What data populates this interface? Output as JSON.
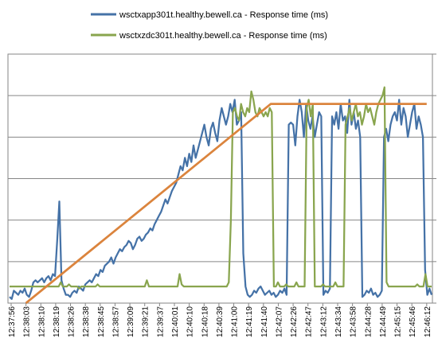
{
  "chart_data": {
    "type": "line",
    "title": "",
    "xlabel": "",
    "ylabel": "",
    "grid": "horizontal",
    "legend_position": "top",
    "x_ticks": [
      "12:37:56",
      "12:38:03",
      "12:38:10",
      "12:38:19",
      "12:38:26",
      "12:38:38",
      "12:38:45",
      "12:38:57",
      "12:39:09",
      "12:39:21",
      "12:39:37",
      "12:40:01",
      "12:40:10",
      "12:40:18",
      "12:40:39",
      "12:41:00",
      "12:41:19",
      "12:41:40",
      "12:42:07",
      "12:42:26",
      "12:42:47",
      "12:43:12",
      "12:43:34",
      "12:43:58",
      "12:44:28",
      "12:44:49",
      "12:45:15",
      "12:45:46",
      "12:46:12"
    ],
    "ylim": [
      0,
      6
    ],
    "series": [
      {
        "name": "wsctxapp301t.healthy.bewell.ca -  Response time (ms)",
        "color": "#4572a7",
        "values": [
          0.15,
          0.1,
          0.3,
          0.25,
          0.2,
          0.3,
          0.25,
          0.35,
          0.2,
          0.15,
          0.3,
          0.5,
          0.55,
          0.5,
          0.55,
          0.6,
          0.5,
          0.6,
          0.65,
          0.55,
          0.7,
          0.65,
          1.5,
          2.45,
          0.55,
          0.35,
          0.2,
          0.2,
          0.15,
          0.25,
          0.3,
          0.25,
          0.4,
          0.35,
          0.3,
          0.45,
          0.5,
          0.55,
          0.5,
          0.6,
          0.7,
          0.65,
          0.8,
          0.75,
          0.9,
          0.95,
          1.0,
          1.1,
          0.95,
          1.1,
          1.2,
          1.3,
          1.25,
          1.35,
          1.4,
          1.5,
          1.45,
          1.3,
          1.4,
          1.55,
          1.6,
          1.5,
          1.55,
          1.65,
          1.7,
          1.8,
          1.75,
          1.9,
          2.0,
          2.1,
          2.2,
          2.35,
          2.5,
          2.4,
          2.55,
          2.7,
          2.8,
          2.9,
          3.1,
          3.3,
          3.2,
          3.5,
          3.3,
          3.6,
          3.4,
          3.8,
          3.5,
          3.7,
          3.9,
          4.1,
          4.3,
          4.0,
          3.8,
          4.2,
          4.35,
          4.1,
          3.9,
          4.4,
          4.7,
          4.5,
          4.3,
          4.5,
          4.8,
          4.6,
          4.9,
          4.3,
          4.4,
          4.6,
          1.2,
          0.4,
          0.2,
          0.15,
          0.2,
          0.3,
          0.25,
          0.35,
          0.4,
          0.3,
          0.2,
          0.25,
          0.3,
          0.2,
          0.25,
          0.15,
          0.2,
          0.3,
          0.25,
          0.35,
          0.2,
          4.3,
          4.35,
          4.3,
          3.8,
          4.5,
          4.9,
          4.6,
          4.0,
          4.8,
          4.4,
          4.2,
          4.5,
          4.0,
          4.3,
          4.6,
          4.5,
          0.2,
          0.3,
          0.25,
          0.35,
          4.5,
          4.3,
          4.6,
          4.2,
          4.8,
          4.4,
          4.5,
          4.1,
          4.9,
          4.3,
          4.6,
          4.2,
          4.4,
          4.0,
          0.15,
          0.2,
          0.3,
          0.25,
          0.35,
          0.2,
          0.25,
          0.15,
          0.2,
          0.3,
          4.0,
          4.2,
          3.9,
          4.3,
          4.5,
          4.6,
          4.4,
          4.9,
          4.3,
          4.7,
          4.5,
          4.0,
          4.3,
          4.6,
          4.8,
          4.2,
          4.5,
          4.3,
          4.0,
          0.8,
          0.2,
          0.35,
          0.2
        ]
      },
      {
        "name": "wsctxzdc301t.healthy.bewell.ca -  Response time (ms)",
        "color": "#89a54e",
        "values": [
          0.4,
          0.4,
          0.4,
          0.4,
          0.4,
          0.4,
          0.4,
          0.4,
          0.4,
          0.4,
          0.4,
          0.4,
          0.4,
          0.4,
          0.4,
          0.4,
          0.4,
          0.4,
          0.4,
          0.4,
          0.4,
          0.4,
          0.4,
          0.4,
          0.4,
          0.5,
          0.4,
          0.4,
          0.4,
          0.45,
          0.4,
          0.4,
          0.4,
          0.4,
          0.35,
          0.4,
          0.4,
          0.4,
          0.4,
          0.4,
          0.4,
          0.4,
          0.4,
          0.45,
          0.4,
          0.4,
          0.4,
          0.4,
          0.4,
          0.4,
          0.4,
          0.4,
          0.4,
          0.4,
          0.4,
          0.4,
          0.4,
          0.4,
          0.4,
          0.4,
          0.4,
          0.4,
          0.4,
          0.4,
          0.4,
          0.4,
          0.4,
          0.55,
          0.4,
          0.4,
          0.4,
          0.4,
          0.4,
          0.4,
          0.4,
          0.4,
          0.4,
          0.4,
          0.4,
          0.4,
          0.4,
          0.4,
          0.4,
          0.7,
          0.45,
          0.4,
          0.4,
          0.4,
          0.4,
          0.4,
          0.4,
          0.4,
          0.4,
          0.4,
          0.4,
          0.4,
          0.4,
          0.4,
          0.4,
          0.4,
          0.4,
          0.4,
          0.4,
          0.4,
          0.4,
          0.4,
          0.4,
          0.5,
          2.0,
          4.6,
          4.7,
          4.5,
          4.4,
          4.8,
          4.6,
          4.5,
          4.7,
          4.6,
          5.1,
          4.9,
          4.6,
          4.5,
          4.7,
          4.6,
          4.5,
          4.6,
          4.5,
          4.7,
          4.6,
          0.4,
          0.4,
          0.5,
          0.4,
          0.4,
          0.4,
          0.45,
          0.4,
          0.4,
          0.4,
          0.4,
          0.5,
          0.4,
          0.4,
          0.4,
          0.4,
          4.7,
          4.9,
          4.5,
          4.8,
          0.4,
          0.4,
          0.4,
          0.4,
          0.45,
          0.4,
          0.4,
          0.4,
          0.4,
          0.4,
          0.5,
          0.4,
          0.4,
          0.4,
          0.4,
          4.3,
          4.5,
          4.7,
          4.4,
          4.6,
          4.8,
          4.5,
          4.6,
          4.3,
          4.5,
          4.8,
          4.6,
          4.7,
          4.5,
          4.3,
          4.6,
          4.8,
          4.9,
          5.0,
          5.2,
          0.5,
          0.4,
          0.4,
          0.4,
          0.4,
          0.4,
          0.4,
          0.4,
          0.4,
          0.4,
          0.4,
          0.4,
          0.4,
          0.4,
          0.4,
          0.45,
          0.4,
          0.4,
          0.4,
          0.7,
          0.4,
          0.4,
          0.4
        ]
      },
      {
        "name": "",
        "color": "#db843d",
        "x_start_index": 1,
        "x_peak_index": 17.5,
        "x_end_index": 28,
        "start_value": 0,
        "peak_value": 4.8,
        "end_value": 4.8
      }
    ]
  }
}
